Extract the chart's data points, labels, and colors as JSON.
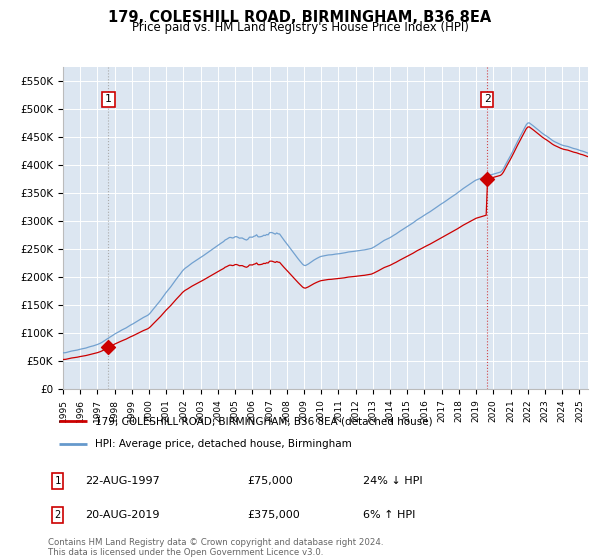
{
  "title": "179, COLESHILL ROAD, BIRMINGHAM, B36 8EA",
  "subtitle": "Price paid vs. HM Land Registry's House Price Index (HPI)",
  "legend_line1": "179, COLESHILL ROAD, BIRMINGHAM, B36 8EA (detached house)",
  "legend_line2": "HPI: Average price, detached house, Birmingham",
  "annotation1_label": "1",
  "annotation1_date": "22-AUG-1997",
  "annotation1_price": "£75,000",
  "annotation1_hpi": "24% ↓ HPI",
  "annotation1_year": 1997.64,
  "annotation1_value": 75000,
  "annotation2_label": "2",
  "annotation2_date": "20-AUG-2019",
  "annotation2_price": "£375,000",
  "annotation2_hpi": "6% ↑ HPI",
  "annotation2_year": 2019.64,
  "annotation2_value": 375000,
  "sale_color": "#cc0000",
  "hpi_color": "#6699cc",
  "background_color": "#dce6f1",
  "plot_bg_color": "#dce6f1",
  "grid_color": "#ffffff",
  "footer": "Contains HM Land Registry data © Crown copyright and database right 2024.\nThis data is licensed under the Open Government Licence v3.0.",
  "ylim": [
    0,
    575000
  ],
  "yticks": [
    0,
    50000,
    100000,
    150000,
    200000,
    250000,
    300000,
    350000,
    400000,
    450000,
    500000,
    550000
  ],
  "ytick_labels": [
    "£0",
    "£50K",
    "£100K",
    "£150K",
    "£200K",
    "£250K",
    "£300K",
    "£350K",
    "£400K",
    "£450K",
    "£500K",
    "£550K"
  ],
  "xlim_start": 1995,
  "xlim_end": 2025.5,
  "xtick_years": [
    1995,
    1996,
    1997,
    1998,
    1999,
    2000,
    2001,
    2002,
    2003,
    2004,
    2005,
    2006,
    2007,
    2008,
    2009,
    2010,
    2011,
    2012,
    2013,
    2014,
    2015,
    2016,
    2017,
    2018,
    2019,
    2020,
    2021,
    2022,
    2023,
    2024,
    2025
  ]
}
